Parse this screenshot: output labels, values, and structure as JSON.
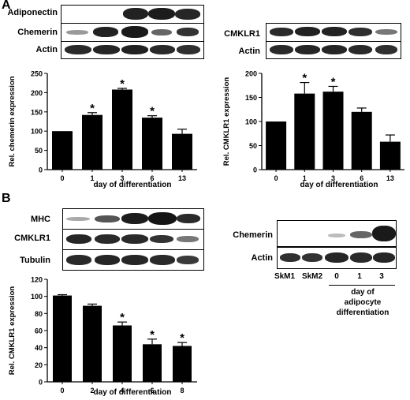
{
  "panels": {
    "a": "A",
    "b": "B"
  },
  "blots": {
    "a_left": [
      "Adiponectin",
      "Chemerin",
      "Actin"
    ],
    "a_right": [
      "CMKLR1",
      "Actin"
    ],
    "b_left": [
      "MHC",
      "CMKLR1",
      "Tubulin"
    ],
    "b_right": [
      "Chemerin",
      "Actin"
    ]
  },
  "b_right_lanes": [
    "SkM1",
    "SkM2",
    "0",
    "1",
    "3"
  ],
  "b_right_caption": [
    "day of",
    "adipocyte",
    "differentiation"
  ],
  "chart_data": [
    {
      "type": "bar",
      "categories": [
        "0",
        "1",
        "3",
        "6",
        "13"
      ],
      "values": [
        100,
        142,
        208,
        135,
        93
      ],
      "errors": [
        0,
        6,
        3,
        5,
        12
      ],
      "significant": [
        false,
        true,
        true,
        true,
        false
      ],
      "xlabel": "day of differentiation",
      "ylabel": "Rel. chemerin expression",
      "ylim": [
        0,
        250
      ],
      "yticks": [
        0,
        50,
        100,
        150,
        200,
        250
      ],
      "sig_symbol": "*"
    },
    {
      "type": "bar",
      "categories": [
        "0",
        "1",
        "3",
        "6",
        "13"
      ],
      "values": [
        100,
        158,
        162,
        120,
        58
      ],
      "errors": [
        0,
        23,
        11,
        8,
        14
      ],
      "significant": [
        false,
        true,
        true,
        false,
        false
      ],
      "xlabel": "day of differentiation",
      "ylabel": "Rel. CMKLR1 expression",
      "ylim": [
        0,
        200
      ],
      "yticks": [
        0,
        50,
        100,
        150,
        200
      ],
      "sig_symbol": "*"
    },
    {
      "type": "bar",
      "categories": [
        "0",
        "2",
        "4",
        "6",
        "8"
      ],
      "values": [
        101,
        89,
        66,
        44,
        42
      ],
      "errors": [
        1,
        2,
        4,
        6,
        4
      ],
      "significant": [
        false,
        false,
        true,
        true,
        true
      ],
      "xlabel": "day of differentiation",
      "ylabel": "Rel. CMKLR1 expression",
      "ylim": [
        0,
        120
      ],
      "yticks": [
        0,
        20,
        40,
        60,
        80,
        100,
        120
      ],
      "sig_symbol": "*"
    }
  ]
}
